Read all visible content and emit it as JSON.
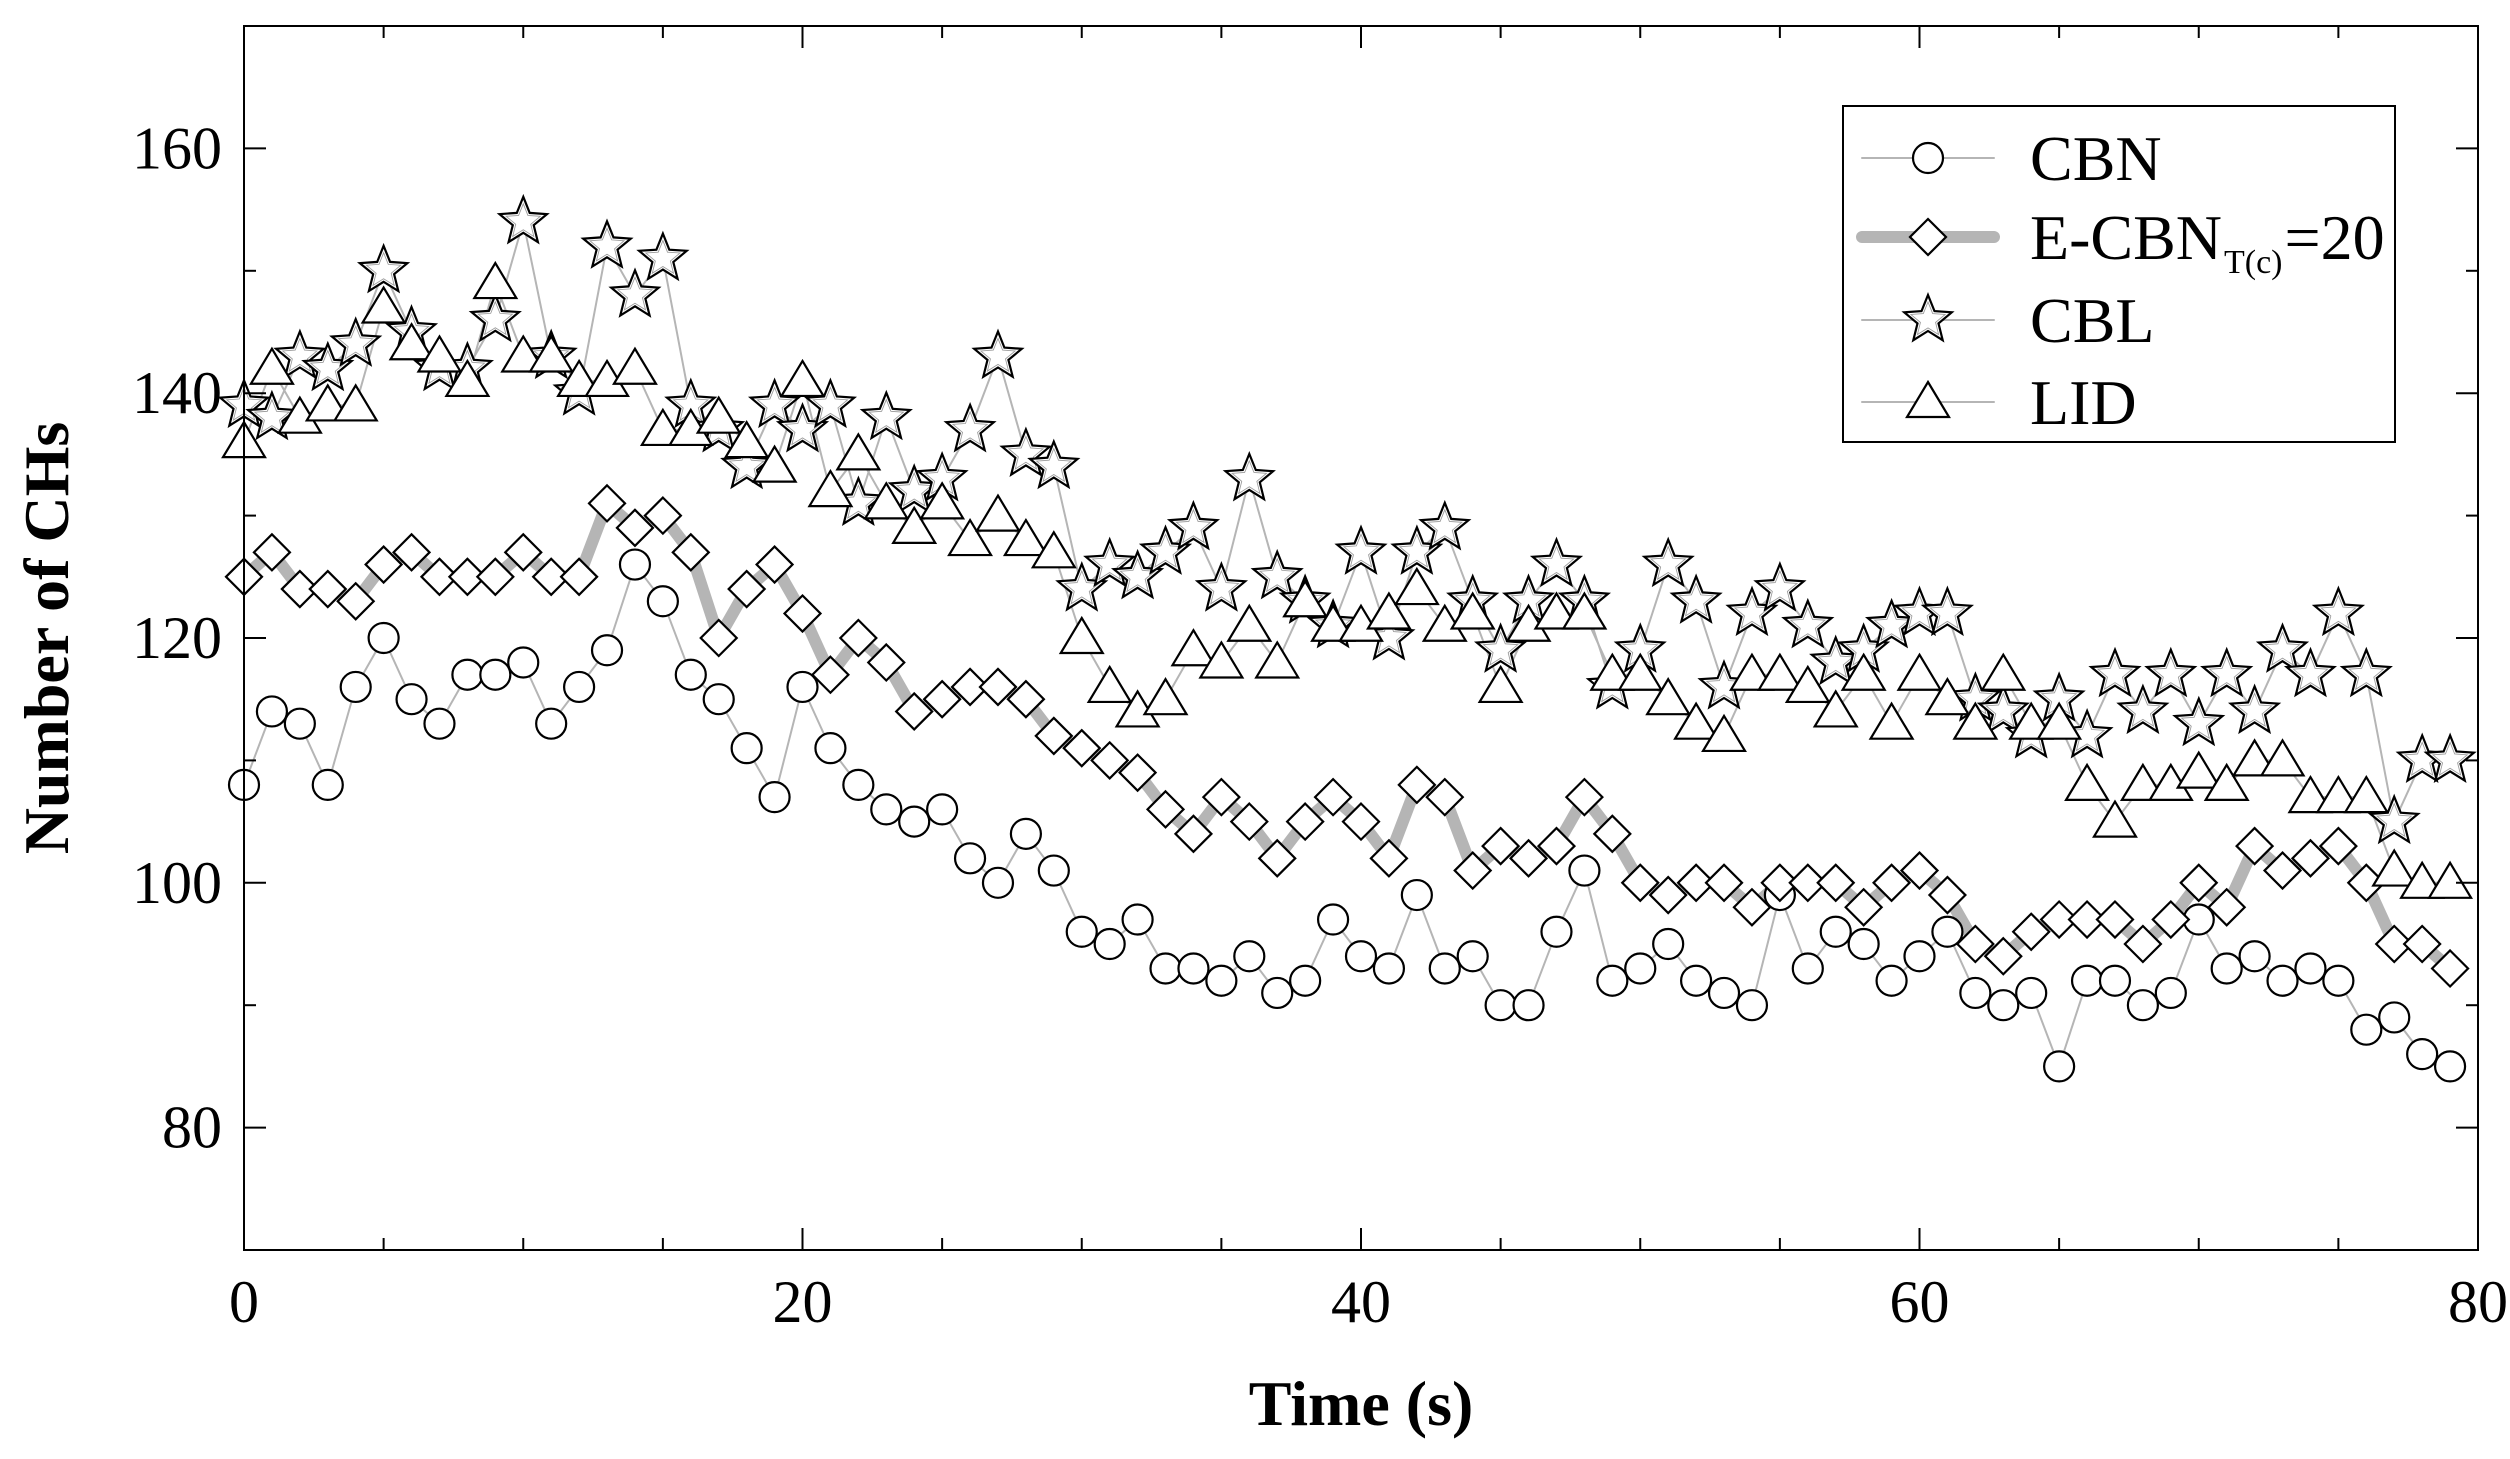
{
  "chart_data": {
    "type": "line",
    "title": "",
    "xlabel": "Time (s)",
    "ylabel": "Number of CHs",
    "xlim": [
      0,
      80
    ],
    "ylim": [
      70,
      170
    ],
    "xticks": [
      0,
      20,
      40,
      60,
      80
    ],
    "yticks": [
      80,
      100,
      120,
      140,
      160
    ],
    "grid": false,
    "legend_position": "top-right",
    "x": [
      0,
      1,
      2,
      3,
      4,
      5,
      6,
      7,
      8,
      9,
      10,
      11,
      12,
      13,
      14,
      15,
      16,
      17,
      18,
      19,
      20,
      21,
      22,
      23,
      24,
      25,
      26,
      27,
      28,
      29,
      30,
      31,
      32,
      33,
      34,
      35,
      36,
      37,
      38,
      39,
      40,
      41,
      42,
      43,
      44,
      45,
      46,
      47,
      48,
      49,
      50,
      51,
      52,
      53,
      54,
      55,
      56,
      57,
      58,
      59,
      60,
      61,
      62,
      63,
      64,
      65,
      66,
      67,
      68,
      69,
      70,
      71,
      72,
      73,
      74,
      75,
      76,
      77,
      78,
      79
    ],
    "series": [
      {
        "name": "CBN",
        "marker": "circle",
        "line_color": "#b5b5b5",
        "line_width": "thin",
        "values": [
          108,
          114,
          113,
          108,
          116,
          120,
          115,
          113,
          117,
          117,
          118,
          113,
          116,
          119,
          126,
          123,
          117,
          115,
          111,
          107,
          116,
          111,
          108,
          106,
          105,
          106,
          102,
          100,
          104,
          101,
          96,
          95,
          97,
          93,
          93,
          92,
          94,
          91,
          92,
          97,
          94,
          93,
          99,
          93,
          94,
          90,
          90,
          96,
          101,
          92,
          93,
          95,
          92,
          91,
          90,
          99,
          93,
          96,
          95,
          92,
          94,
          96,
          91,
          90,
          91,
          85,
          92,
          92,
          90,
          91,
          97,
          93,
          94,
          92,
          93,
          92,
          88,
          89,
          86,
          85
        ]
      },
      {
        "name": "E-CBN",
        "legend_sub": "T(c)",
        "legend_suffix": "=20",
        "marker": "diamond",
        "line_color": "#b5b5b5",
        "line_width": "thick",
        "values": [
          125,
          127,
          124,
          124,
          123,
          126,
          127,
          125,
          125,
          125,
          127,
          125,
          125,
          131,
          129,
          130,
          127,
          120,
          124,
          126,
          122,
          117,
          120,
          118,
          114,
          115,
          116,
          116,
          115,
          112,
          111,
          110,
          109,
          106,
          104,
          107,
          105,
          102,
          105,
          107,
          105,
          102,
          108,
          107,
          101,
          103,
          102,
          103,
          107,
          104,
          100,
          99,
          100,
          100,
          98,
          100,
          100,
          100,
          98,
          100,
          101,
          99,
          95,
          94,
          96,
          97,
          97,
          97,
          95,
          97,
          100,
          98,
          103,
          101,
          102,
          103,
          100,
          95,
          95,
          93
        ]
      },
      {
        "name": "CBL",
        "marker": "star",
        "line_color": "#b5b5b5",
        "line_width": "thin",
        "values": [
          139,
          138,
          143,
          142,
          144,
          150,
          145,
          142,
          142,
          146,
          154,
          143,
          140,
          152,
          148,
          151,
          139,
          137,
          134,
          139,
          137,
          139,
          131,
          138,
          132,
          133,
          137,
          143,
          135,
          134,
          124,
          126,
          125,
          127,
          129,
          124,
          133,
          125,
          123,
          121,
          127,
          120,
          127,
          129,
          123,
          119,
          123,
          126,
          123,
          116,
          119,
          126,
          123,
          116,
          122,
          124,
          121,
          118,
          119,
          121,
          122,
          122,
          115,
          114,
          112,
          115,
          112,
          117,
          114,
          117,
          113,
          117,
          114,
          119,
          117,
          122,
          117,
          105,
          110,
          110
        ]
      },
      {
        "name": "LID",
        "marker": "triangle",
        "line_color": "#b5b5b5",
        "line_width": "thin",
        "values": [
          136,
          142,
          138,
          139,
          139,
          147,
          144,
          143,
          141,
          149,
          143,
          143,
          141,
          141,
          142,
          137,
          137,
          138,
          136,
          134,
          141,
          132,
          135,
          131,
          129,
          131,
          128,
          130,
          128,
          127,
          120,
          116,
          114,
          115,
          119,
          118,
          121,
          118,
          123,
          121,
          121,
          122,
          124,
          121,
          122,
          116,
          121,
          122,
          122,
          117,
          117,
          115,
          113,
          112,
          117,
          117,
          116,
          114,
          117,
          113,
          117,
          115,
          113,
          117,
          113,
          113,
          108,
          105,
          108,
          108,
          109,
          108,
          110,
          110,
          107,
          107,
          107,
          101,
          100,
          100
        ]
      }
    ]
  }
}
